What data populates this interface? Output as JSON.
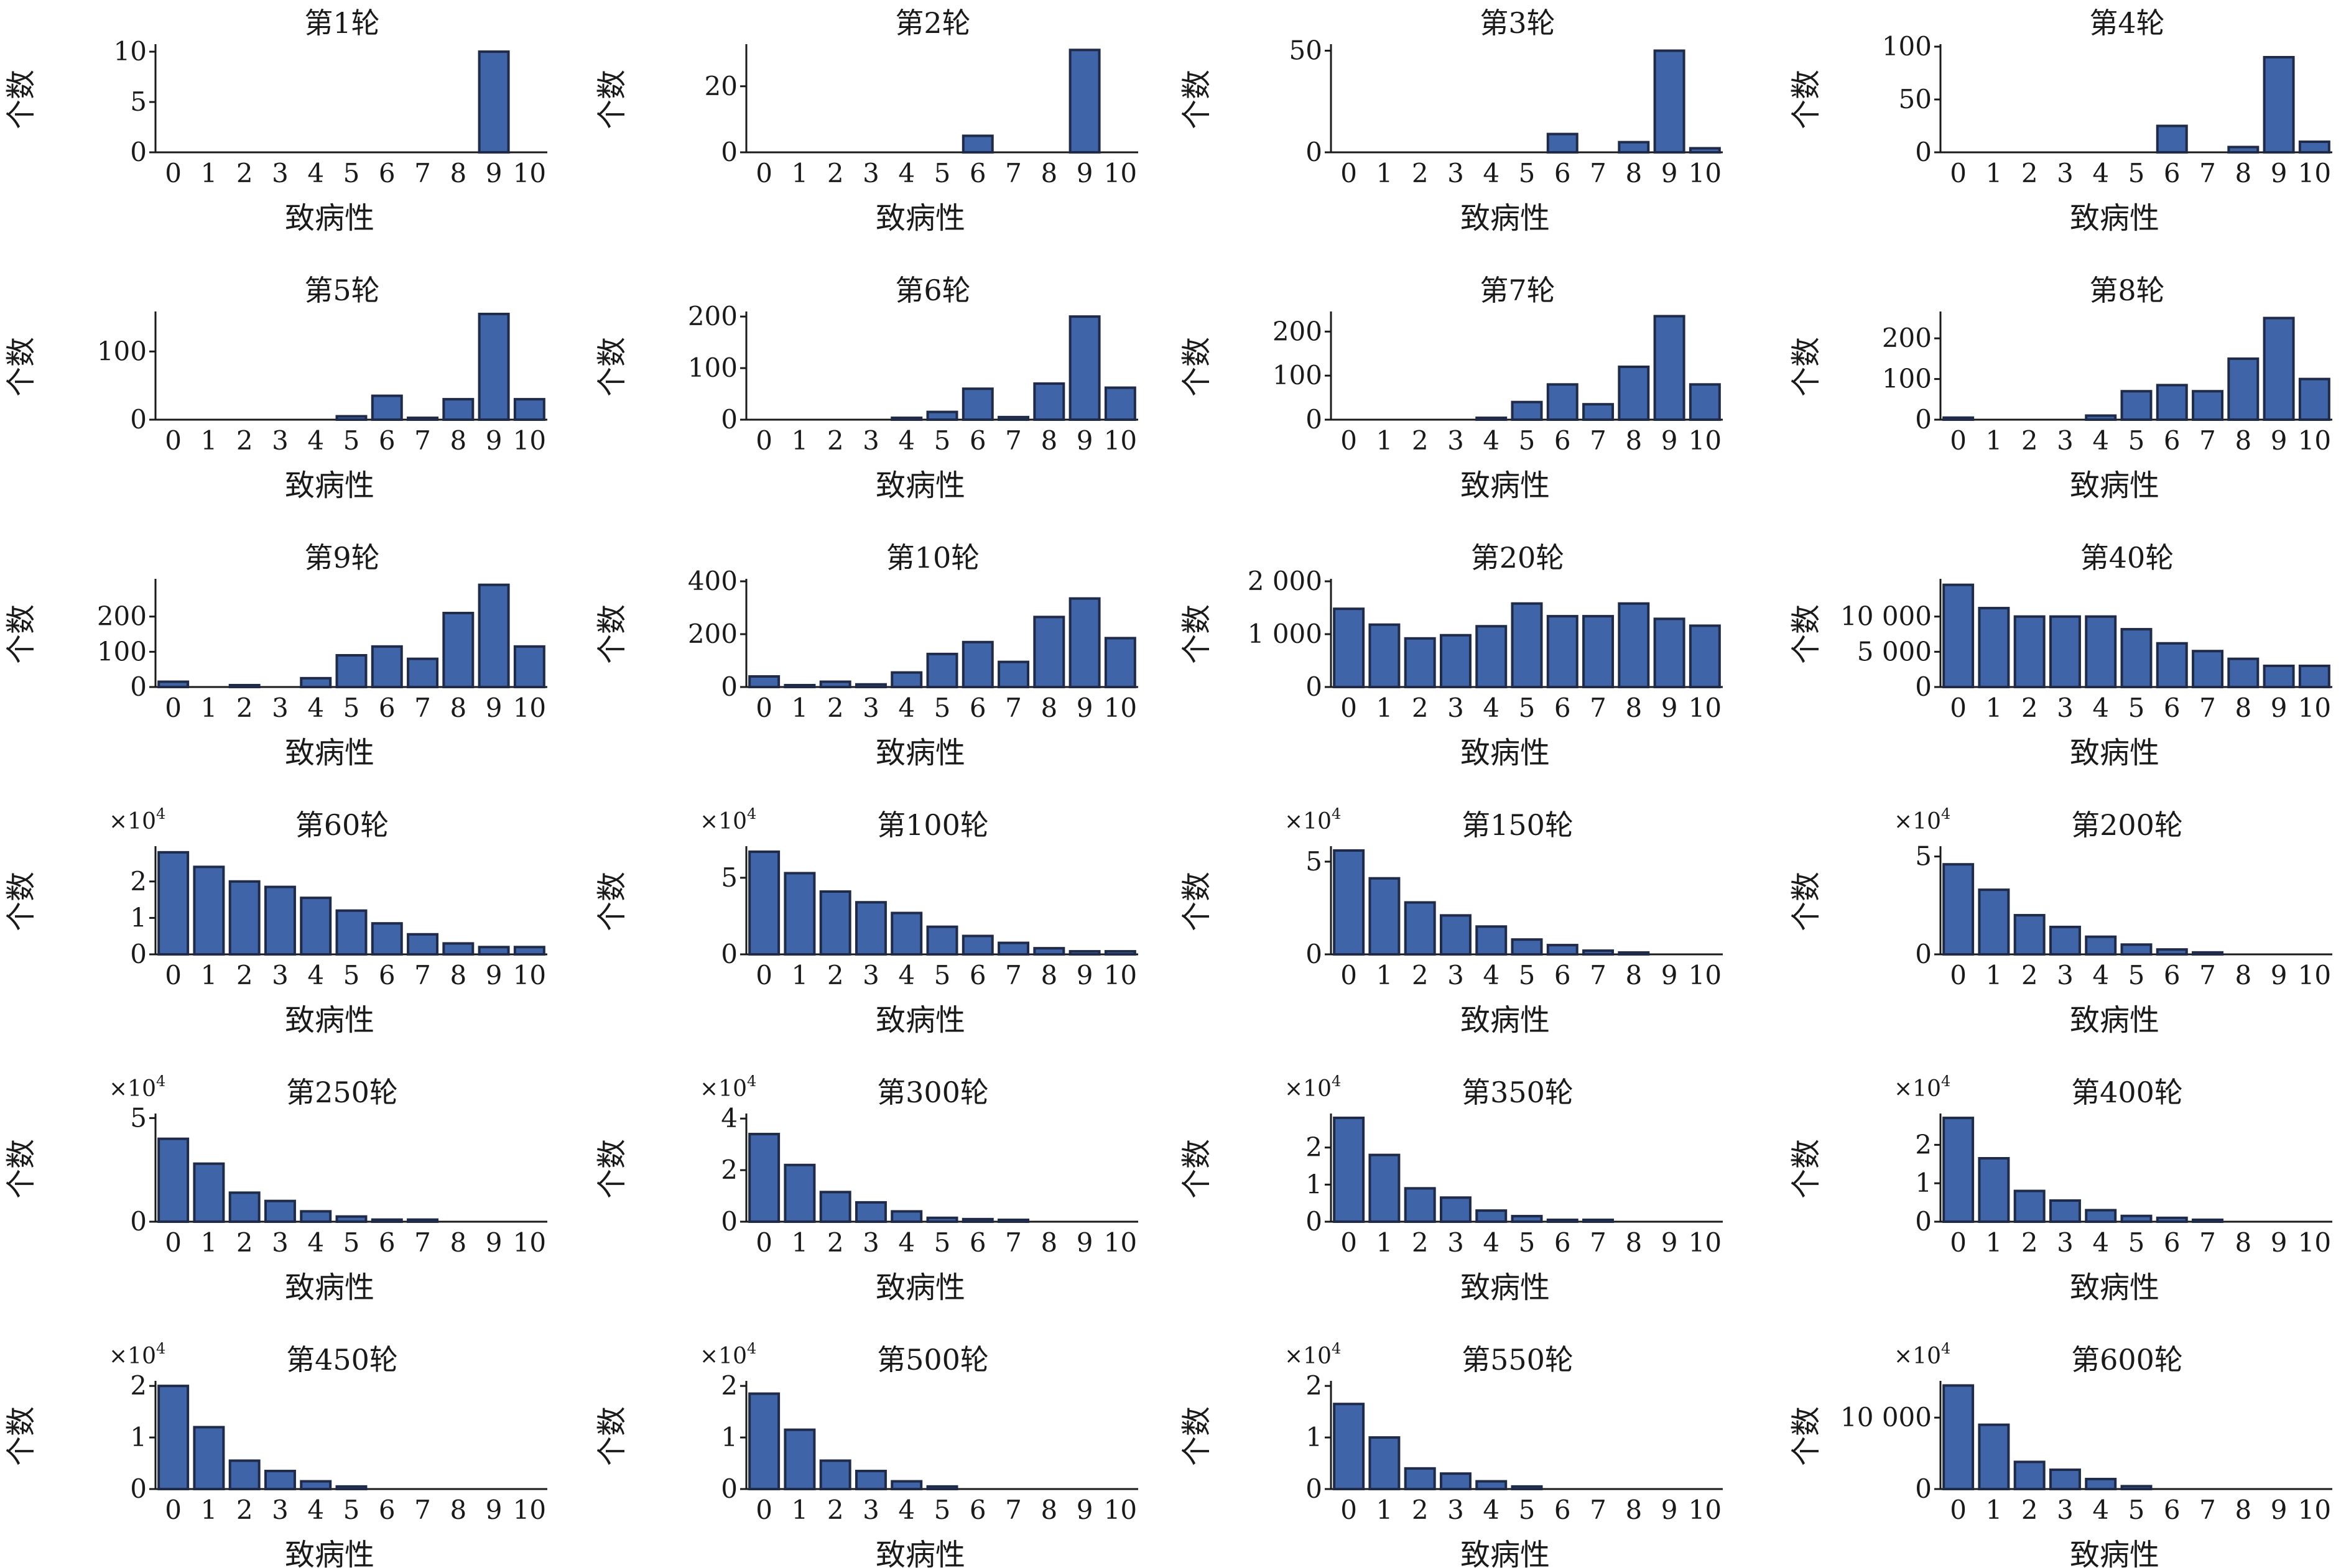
{
  "style": {
    "bar_fill": "#3F64A8",
    "bar_edge": "#1F2B48",
    "axis_color": "#1a1a1a"
  },
  "chart_data": [
    {
      "type": "bar",
      "title": "第1轮",
      "xlabel": "致病性",
      "ylabel": "个数",
      "categories": [
        "0",
        "1",
        "2",
        "3",
        "4",
        "5",
        "6",
        "7",
        "8",
        "9",
        "10"
      ],
      "values": [
        0,
        0,
        0,
        0,
        0,
        0,
        0,
        0,
        0,
        10,
        0
      ],
      "ylim": [
        0,
        10.5
      ],
      "yticks": [
        0,
        5,
        10
      ],
      "ytick_labels": [
        "0",
        "5",
        "10"
      ],
      "multiplier": ""
    },
    {
      "type": "bar",
      "title": "第2轮",
      "xlabel": "致病性",
      "ylabel": "个数",
      "categories": [
        "0",
        "1",
        "2",
        "3",
        "4",
        "5",
        "6",
        "7",
        "8",
        "9",
        "10"
      ],
      "values": [
        0,
        0,
        0,
        0,
        0,
        0,
        5,
        0,
        0,
        31,
        0
      ],
      "ylim": [
        0,
        32
      ],
      "yticks": [
        0,
        20
      ],
      "ytick_labels": [
        "0",
        "20"
      ],
      "multiplier": ""
    },
    {
      "type": "bar",
      "title": "第3轮",
      "xlabel": "致病性",
      "ylabel": "个数",
      "categories": [
        "0",
        "1",
        "2",
        "3",
        "4",
        "5",
        "6",
        "7",
        "8",
        "9",
        "10"
      ],
      "values": [
        0,
        0,
        0,
        0,
        0,
        0,
        9,
        0,
        5,
        50,
        2
      ],
      "ylim": [
        0,
        52
      ],
      "yticks": [
        0,
        50
      ],
      "ytick_labels": [
        "0",
        "50"
      ],
      "multiplier": ""
    },
    {
      "type": "bar",
      "title": "第4轮",
      "xlabel": "致病性",
      "ylabel": "个数",
      "categories": [
        "0",
        "1",
        "2",
        "3",
        "4",
        "5",
        "6",
        "7",
        "8",
        "9",
        "10"
      ],
      "values": [
        0,
        0,
        0,
        0,
        0,
        0,
        25,
        0,
        5,
        90,
        10
      ],
      "ylim": [
        0,
        100
      ],
      "yticks": [
        0,
        50,
        100
      ],
      "ytick_labels": [
        "0",
        "50",
        "100"
      ],
      "multiplier": ""
    },
    {
      "type": "bar",
      "title": "第5轮",
      "xlabel": "致病性",
      "ylabel": "个数",
      "categories": [
        "0",
        "1",
        "2",
        "3",
        "4",
        "5",
        "6",
        "7",
        "8",
        "9",
        "10"
      ],
      "values": [
        0,
        0,
        0,
        0,
        0,
        5,
        35,
        2,
        30,
        155,
        30
      ],
      "ylim": [
        0,
        155
      ],
      "yticks": [
        0,
        100
      ],
      "ytick_labels": [
        "0",
        "100"
      ],
      "multiplier": ""
    },
    {
      "type": "bar",
      "title": "第6轮",
      "xlabel": "致病性",
      "ylabel": "个数",
      "categories": [
        "0",
        "1",
        "2",
        "3",
        "4",
        "5",
        "6",
        "7",
        "8",
        "9",
        "10"
      ],
      "values": [
        0,
        0,
        0,
        0,
        3,
        15,
        60,
        5,
        70,
        200,
        62
      ],
      "ylim": [
        0,
        205
      ],
      "yticks": [
        0,
        100,
        200
      ],
      "ytick_labels": [
        "0",
        "100",
        "200"
      ],
      "multiplier": ""
    },
    {
      "type": "bar",
      "title": "第7轮",
      "xlabel": "致病性",
      "ylabel": "个数",
      "categories": [
        "0",
        "1",
        "2",
        "3",
        "4",
        "5",
        "6",
        "7",
        "8",
        "9",
        "10"
      ],
      "values": [
        0,
        0,
        0,
        0,
        3,
        40,
        80,
        35,
        120,
        235,
        80
      ],
      "ylim": [
        0,
        240
      ],
      "yticks": [
        0,
        100,
        200
      ],
      "ytick_labels": [
        "0",
        "100",
        "200"
      ],
      "multiplier": ""
    },
    {
      "type": "bar",
      "title": "第8轮",
      "xlabel": "致病性",
      "ylabel": "个数",
      "categories": [
        "0",
        "1",
        "2",
        "3",
        "4",
        "5",
        "6",
        "7",
        "8",
        "9",
        "10"
      ],
      "values": [
        5,
        0,
        0,
        0,
        10,
        70,
        85,
        70,
        150,
        250,
        100
      ],
      "ylim": [
        0,
        260
      ],
      "yticks": [
        0,
        100,
        200
      ],
      "ytick_labels": [
        "0",
        "100",
        "200"
      ],
      "multiplier": ""
    },
    {
      "type": "bar",
      "title": "第9轮",
      "xlabel": "致病性",
      "ylabel": "个数",
      "categories": [
        "0",
        "1",
        "2",
        "3",
        "4",
        "5",
        "6",
        "7",
        "8",
        "9",
        "10"
      ],
      "values": [
        15,
        0,
        5,
        0,
        25,
        90,
        115,
        80,
        210,
        290,
        115
      ],
      "ylim": [
        0,
        300
      ],
      "yticks": [
        0,
        100,
        200
      ],
      "ytick_labels": [
        "0",
        "100",
        "200"
      ],
      "multiplier": ""
    },
    {
      "type": "bar",
      "title": "第10轮",
      "xlabel": "致病性",
      "ylabel": "个数",
      "categories": [
        "0",
        "1",
        "2",
        "3",
        "4",
        "5",
        "6",
        "7",
        "8",
        "9",
        "10"
      ],
      "values": [
        40,
        5,
        20,
        10,
        55,
        125,
        170,
        95,
        265,
        335,
        185
      ],
      "ylim": [
        0,
        400
      ],
      "yticks": [
        0,
        200,
        400
      ],
      "ytick_labels": [
        "0",
        "200",
        "400"
      ],
      "multiplier": ""
    },
    {
      "type": "bar",
      "title": "第20轮",
      "xlabel": "致病性",
      "ylabel": "个数",
      "categories": [
        "0",
        "1",
        "2",
        "3",
        "4",
        "5",
        "6",
        "7",
        "8",
        "9",
        "10"
      ],
      "values": [
        1480,
        1180,
        920,
        980,
        1150,
        1580,
        1340,
        1340,
        1580,
        1290,
        1160
      ],
      "ylim": [
        0,
        2000
      ],
      "yticks": [
        0,
        1000,
        2000
      ],
      "ytick_labels": [
        "0",
        "1 000",
        "2 000"
      ],
      "multiplier": ""
    },
    {
      "type": "bar",
      "title": "第40轮",
      "xlabel": "致病性",
      "ylabel": "个数",
      "categories": [
        "0",
        "1",
        "2",
        "3",
        "4",
        "5",
        "6",
        "7",
        "8",
        "9",
        "10"
      ],
      "values": [
        14500,
        11200,
        10000,
        10000,
        10000,
        8200,
        6200,
        5100,
        4000,
        3000,
        3000
      ],
      "ylim": [
        0,
        15000
      ],
      "yticks": [
        0,
        5000,
        10000
      ],
      "ytick_labels": [
        "0",
        "5 000",
        "10 000"
      ],
      "multiplier": ""
    },
    {
      "type": "bar",
      "title": "第60轮",
      "xlabel": "致病性",
      "ylabel": "个数",
      "categories": [
        "0",
        "1",
        "2",
        "3",
        "4",
        "5",
        "6",
        "7",
        "8",
        "9",
        "10"
      ],
      "values": [
        2.8,
        2.4,
        2.0,
        1.85,
        1.55,
        1.2,
        0.85,
        0.55,
        0.3,
        0.2,
        0.2
      ],
      "ylim": [
        0,
        2.9
      ],
      "yticks": [
        0,
        1,
        2
      ],
      "ytick_labels": [
        "0",
        "1",
        "2"
      ],
      "multiplier": "×10",
      "multiplier_exp": "4"
    },
    {
      "type": "bar",
      "title": "第100轮",
      "xlabel": "致病性",
      "ylabel": "个数",
      "categories": [
        "0",
        "1",
        "2",
        "3",
        "4",
        "5",
        "6",
        "7",
        "8",
        "9",
        "10"
      ],
      "values": [
        6.7,
        5.3,
        4.1,
        3.4,
        2.7,
        1.8,
        1.2,
        0.75,
        0.4,
        0.2,
        0.2
      ],
      "ylim": [
        0,
        6.9
      ],
      "yticks": [
        0,
        5
      ],
      "ytick_labels": [
        "0",
        "5"
      ],
      "multiplier": "×10",
      "multiplier_exp": "4"
    },
    {
      "type": "bar",
      "title": "第150轮",
      "xlabel": "致病性",
      "ylabel": "个数",
      "categories": [
        "0",
        "1",
        "2",
        "3",
        "4",
        "5",
        "6",
        "7",
        "8",
        "9",
        "10"
      ],
      "values": [
        5.6,
        4.1,
        2.8,
        2.1,
        1.5,
        0.8,
        0.5,
        0.2,
        0.1,
        0,
        0
      ],
      "ylim": [
        0,
        5.7
      ],
      "yticks": [
        0,
        5
      ],
      "ytick_labels": [
        "0",
        "5"
      ],
      "multiplier": "×10",
      "multiplier_exp": "4"
    },
    {
      "type": "bar",
      "title": "第200轮",
      "xlabel": "致病性",
      "ylabel": "个数",
      "categories": [
        "0",
        "1",
        "2",
        "3",
        "4",
        "5",
        "6",
        "7",
        "8",
        "9",
        "10"
      ],
      "values": [
        4.6,
        3.3,
        2.0,
        1.4,
        0.9,
        0.5,
        0.25,
        0.1,
        0,
        0,
        0
      ],
      "ylim": [
        0,
        5.4
      ],
      "yticks": [
        0,
        5
      ],
      "ytick_labels": [
        "0",
        "5"
      ],
      "multiplier": "×10",
      "multiplier_exp": "4"
    },
    {
      "type": "bar",
      "title": "第250轮",
      "xlabel": "致病性",
      "ylabel": "个数",
      "categories": [
        "0",
        "1",
        "2",
        "3",
        "4",
        "5",
        "6",
        "7",
        "8",
        "9",
        "10"
      ],
      "values": [
        4.0,
        2.8,
        1.4,
        1.0,
        0.5,
        0.25,
        0.1,
        0.1,
        0,
        0,
        0
      ],
      "ylim": [
        0,
        5.1
      ],
      "yticks": [
        0,
        5
      ],
      "ytick_labels": [
        "0",
        "5"
      ],
      "multiplier": "×10",
      "multiplier_exp": "4"
    },
    {
      "type": "bar",
      "title": "第300轮",
      "xlabel": "致病性",
      "ylabel": "个数",
      "categories": [
        "0",
        "1",
        "2",
        "3",
        "4",
        "5",
        "6",
        "7",
        "8",
        "9",
        "10"
      ],
      "values": [
        3.4,
        2.2,
        1.15,
        0.75,
        0.4,
        0.15,
        0.1,
        0.05,
        0,
        0,
        0
      ],
      "ylim": [
        0,
        4.1
      ],
      "yticks": [
        0,
        2,
        4
      ],
      "ytick_labels": [
        "0",
        "2",
        "4"
      ],
      "multiplier": "×10",
      "multiplier_exp": "4"
    },
    {
      "type": "bar",
      "title": "第350轮",
      "xlabel": "致病性",
      "ylabel": "个数",
      "categories": [
        "0",
        "1",
        "2",
        "3",
        "4",
        "5",
        "6",
        "7",
        "8",
        "9",
        "10"
      ],
      "values": [
        2.8,
        1.8,
        0.9,
        0.65,
        0.3,
        0.15,
        0.05,
        0.05,
        0,
        0,
        0
      ],
      "ylim": [
        0,
        2.85
      ],
      "yticks": [
        0,
        1,
        2
      ],
      "ytick_labels": [
        "0",
        "1",
        "2"
      ],
      "multiplier": "×10",
      "multiplier_exp": "4"
    },
    {
      "type": "bar",
      "title": "第400轮",
      "xlabel": "致病性",
      "ylabel": "个数",
      "categories": [
        "0",
        "1",
        "2",
        "3",
        "4",
        "5",
        "6",
        "7",
        "8",
        "9",
        "10"
      ],
      "values": [
        2.7,
        1.65,
        0.8,
        0.55,
        0.3,
        0.15,
        0.1,
        0.05,
        0,
        0,
        0
      ],
      "ylim": [
        0,
        2.75
      ],
      "yticks": [
        0,
        1,
        2
      ],
      "ytick_labels": [
        "0",
        "1",
        "2"
      ],
      "multiplier": "×10",
      "multiplier_exp": "4"
    },
    {
      "type": "bar",
      "title": "第450轮",
      "xlabel": "致病性",
      "ylabel": "个数",
      "categories": [
        "0",
        "1",
        "2",
        "3",
        "4",
        "5",
        "6",
        "7",
        "8",
        "9",
        "10"
      ],
      "values": [
        2.0,
        1.2,
        0.55,
        0.35,
        0.15,
        0.05,
        0,
        0,
        0,
        0,
        0
      ],
      "ylim": [
        0,
        2.05
      ],
      "yticks": [
        0,
        1,
        2
      ],
      "ytick_labels": [
        "0",
        "1",
        "2"
      ],
      "multiplier": "×10",
      "multiplier_exp": "4"
    },
    {
      "type": "bar",
      "title": "第500轮",
      "xlabel": "致病性",
      "ylabel": "个数",
      "categories": [
        "0",
        "1",
        "2",
        "3",
        "4",
        "5",
        "6",
        "7",
        "8",
        "9",
        "10"
      ],
      "values": [
        1.85,
        1.15,
        0.55,
        0.35,
        0.15,
        0.05,
        0,
        0,
        0,
        0,
        0
      ],
      "ylim": [
        0,
        2.05
      ],
      "yticks": [
        0,
        1,
        2
      ],
      "ytick_labels": [
        "0",
        "1",
        "2"
      ],
      "multiplier": "×10",
      "multiplier_exp": "4"
    },
    {
      "type": "bar",
      "title": "第550轮",
      "xlabel": "致病性",
      "ylabel": "个数",
      "categories": [
        "0",
        "1",
        "2",
        "3",
        "4",
        "5",
        "6",
        "7",
        "8",
        "9",
        "10"
      ],
      "values": [
        1.65,
        1.0,
        0.4,
        0.3,
        0.15,
        0.05,
        0,
        0,
        0,
        0,
        0
      ],
      "ylim": [
        0,
        2.05
      ],
      "yticks": [
        0,
        1,
        2
      ],
      "ytick_labels": [
        "0",
        "1",
        "2"
      ],
      "multiplier": "×10",
      "multiplier_exp": "4"
    },
    {
      "type": "bar",
      "title": "第600轮",
      "xlabel": "致病性",
      "ylabel": "个数",
      "categories": [
        "0",
        "1",
        "2",
        "3",
        "4",
        "5",
        "6",
        "7",
        "8",
        "9",
        "10"
      ],
      "values": [
        14500,
        9000,
        3800,
        2700,
        1400,
        400,
        0,
        0,
        0,
        0,
        0
      ],
      "ylim": [
        0,
        14800
      ],
      "yticks": [
        0,
        10000
      ],
      "ytick_labels": [
        "0",
        "10 000"
      ],
      "multiplier": "×10",
      "multiplier_exp": "4"
    }
  ]
}
